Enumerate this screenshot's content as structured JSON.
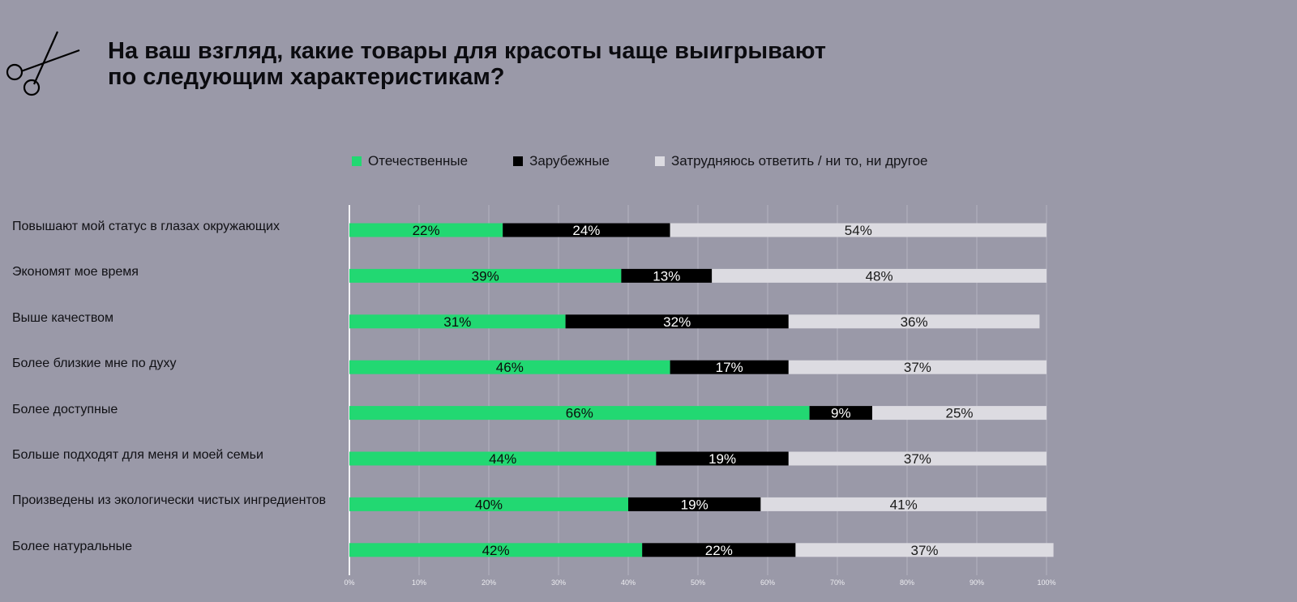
{
  "title_lines": [
    "На ваш взгляд, какие товары для красоты чаще выигрывают",
    "по следующим характеристикам?"
  ],
  "icon": "scissors-icon",
  "colors": {
    "background": "#9a99a8",
    "domestic": "#22d872",
    "foreign": "#000000",
    "undecided": "#dcdbe1",
    "grid": "#b4b3c0",
    "axis": "#f2f2f5"
  },
  "chart_data": {
    "type": "bar",
    "orientation": "horizontal",
    "stacked": true,
    "legend_position": "top",
    "categories": [
      "Повышают мой статус в глазах окружающих",
      "Экономят мое время",
      "Выше качеством",
      "Более близкие мне по духу",
      "Более доступные",
      "Больше подходят для меня и моей семьи",
      "Произведены из экологически чистых ингредиентов",
      "Более натуральные"
    ],
    "series": [
      {
        "name": "Отечественные",
        "color": "#22d872",
        "label_color": "#0c0c0c",
        "values": [
          22,
          39,
          31,
          46,
          66,
          44,
          40,
          42
        ]
      },
      {
        "name": "Зарубежные",
        "color": "#000000",
        "label_color": "#ffffff",
        "values": [
          24,
          13,
          32,
          17,
          9,
          19,
          19,
          22
        ]
      },
      {
        "name": "Затрудняюсь ответить / ни то, ни другое",
        "color": "#dcdbe1",
        "label_color": "#1a1a1a",
        "values": [
          54,
          48,
          36,
          37,
          25,
          37,
          41,
          37
        ]
      }
    ],
    "xlim": [
      0,
      100
    ],
    "x_ticks": [
      "0%",
      "10%",
      "20%",
      "30%",
      "40%",
      "50%",
      "60%",
      "70%",
      "80%",
      "90%",
      "100%"
    ],
    "grid": true
  }
}
